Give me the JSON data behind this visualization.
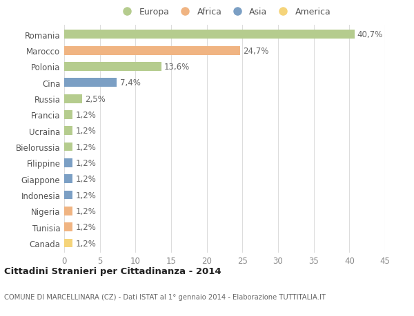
{
  "countries": [
    "Romania",
    "Marocco",
    "Polonia",
    "Cina",
    "Russia",
    "Francia",
    "Ucraina",
    "Bielorussia",
    "Filippine",
    "Giappone",
    "Indonesia",
    "Nigeria",
    "Tunisia",
    "Canada"
  ],
  "values": [
    40.7,
    24.7,
    13.6,
    7.4,
    2.5,
    1.2,
    1.2,
    1.2,
    1.2,
    1.2,
    1.2,
    1.2,
    1.2,
    1.2
  ],
  "labels": [
    "40,7%",
    "24,7%",
    "13,6%",
    "7,4%",
    "2,5%",
    "1,2%",
    "1,2%",
    "1,2%",
    "1,2%",
    "1,2%",
    "1,2%",
    "1,2%",
    "1,2%",
    "1,2%"
  ],
  "continents": [
    "Europa",
    "Africa",
    "Europa",
    "Asia",
    "Europa",
    "Europa",
    "Europa",
    "Europa",
    "Asia",
    "Asia",
    "Asia",
    "Africa",
    "Africa",
    "America"
  ],
  "colors": {
    "Europa": "#b5cc8e",
    "Africa": "#f0b482",
    "Asia": "#7b9fc4",
    "America": "#f5d47a"
  },
  "legend_order": [
    "Europa",
    "Africa",
    "Asia",
    "America"
  ],
  "legend_colors": [
    "#b5cc8e",
    "#f0b482",
    "#7b9fc4",
    "#f5d47a"
  ],
  "xlim": [
    0,
    45
  ],
  "xticks": [
    0,
    5,
    10,
    15,
    20,
    25,
    30,
    35,
    40,
    45
  ],
  "title_bold": "Cittadini Stranieri per Cittadinanza - 2014",
  "subtitle": "COMUNE DI MARCELLINARA (CZ) - Dati ISTAT al 1° gennaio 2014 - Elaborazione TUTTITALIA.IT",
  "background_color": "#ffffff",
  "bar_height": 0.55,
  "label_fontsize": 8.5,
  "tick_fontsize": 8.5,
  "grid_color": "#dddddd"
}
